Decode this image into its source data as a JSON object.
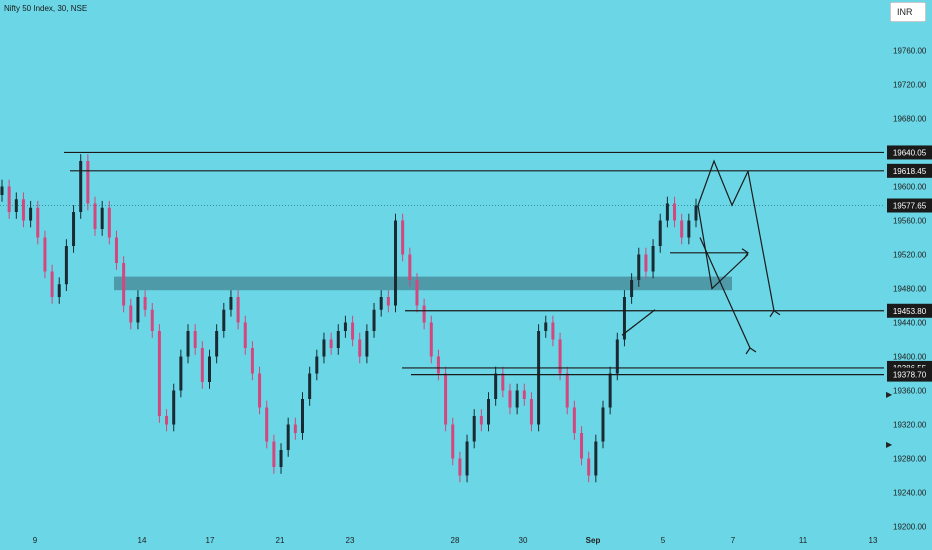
{
  "header": {
    "symbol": "Nifty 50 Index, 30, NSE",
    "currency": "INR"
  },
  "colors": {
    "background": "#6ad6e6",
    "up": "#1a2a33",
    "down": "#d6457e",
    "line": "#1a1a1a",
    "zone": "#4a8f9c",
    "tag_bg": "#1a1a1a",
    "tag_text": "#ffffff"
  },
  "chart_data": {
    "type": "candlestick",
    "title": "Nifty 50 Index, 30, NSE",
    "ylim": [
      19190,
      19790
    ],
    "y_ticks": [
      "19760.00",
      "19720.00",
      "19680.00",
      "19640.00",
      "19600.00",
      "19560.00",
      "19520.00",
      "19480.00",
      "19440.00",
      "19400.00",
      "19360.00",
      "19320.00",
      "19280.00",
      "19240.00",
      "19200.00"
    ],
    "x_ticks": [
      "9",
      "14",
      "17",
      "21",
      "23",
      "28",
      "30",
      "Sep",
      "5",
      "7",
      "11",
      "13"
    ],
    "levels": [
      {
        "label": "19640.05",
        "value": 19640.05
      },
      {
        "label": "19618.45",
        "value": 19618.45
      },
      {
        "label": "19453.80",
        "value": 19453.8
      },
      {
        "label": "19386.55",
        "value": 19386.55
      },
      {
        "label": "19378.70",
        "value": 19378.7
      }
    ],
    "last_price": {
      "label": "19577.65",
      "value": 19577.65
    },
    "zone": {
      "low": 19478,
      "high": 19494
    },
    "price_path": [
      [
        19600,
        "up"
      ],
      [
        19570,
        "dn"
      ],
      [
        19585,
        "up"
      ],
      [
        19560,
        "dn"
      ],
      [
        19575,
        "up"
      ],
      [
        19540,
        "dn"
      ],
      [
        19500,
        "dn"
      ],
      [
        19470,
        "dn"
      ],
      [
        19485,
        "up"
      ],
      [
        19530,
        "up"
      ],
      [
        19570,
        "up"
      ],
      [
        19630,
        "up"
      ],
      [
        19580,
        "dn"
      ],
      [
        19550,
        "dn"
      ],
      [
        19575,
        "up"
      ],
      [
        19540,
        "dn"
      ],
      [
        19510,
        "dn"
      ],
      [
        19460,
        "dn"
      ],
      [
        19440,
        "dn"
      ],
      [
        19470,
        "up"
      ],
      [
        19455,
        "dn"
      ],
      [
        19430,
        "dn"
      ],
      [
        19330,
        "dn"
      ],
      [
        19320,
        "dn"
      ],
      [
        19360,
        "up"
      ],
      [
        19400,
        "up"
      ],
      [
        19430,
        "up"
      ],
      [
        19410,
        "dn"
      ],
      [
        19370,
        "dn"
      ],
      [
        19400,
        "up"
      ],
      [
        19430,
        "up"
      ],
      [
        19455,
        "up"
      ],
      [
        19470,
        "up"
      ],
      [
        19440,
        "dn"
      ],
      [
        19410,
        "dn"
      ],
      [
        19380,
        "dn"
      ],
      [
        19340,
        "dn"
      ],
      [
        19300,
        "dn"
      ],
      [
        19270,
        "dn"
      ],
      [
        19290,
        "up"
      ],
      [
        19320,
        "up"
      ],
      [
        19310,
        "dn"
      ],
      [
        19350,
        "up"
      ],
      [
        19380,
        "up"
      ],
      [
        19400,
        "up"
      ],
      [
        19420,
        "up"
      ],
      [
        19410,
        "dn"
      ],
      [
        19430,
        "up"
      ],
      [
        19440,
        "up"
      ],
      [
        19420,
        "dn"
      ],
      [
        19400,
        "dn"
      ],
      [
        19430,
        "up"
      ],
      [
        19455,
        "up"
      ],
      [
        19470,
        "up"
      ],
      [
        19460,
        "dn"
      ],
      [
        19560,
        "up"
      ],
      [
        19520,
        "dn"
      ],
      [
        19490,
        "dn"
      ],
      [
        19460,
        "dn"
      ],
      [
        19440,
        "dn"
      ],
      [
        19400,
        "dn"
      ],
      [
        19380,
        "dn"
      ],
      [
        19320,
        "dn"
      ],
      [
        19280,
        "dn"
      ],
      [
        19260,
        "dn"
      ],
      [
        19300,
        "up"
      ],
      [
        19330,
        "up"
      ],
      [
        19320,
        "dn"
      ],
      [
        19350,
        "up"
      ],
      [
        19380,
        "up"
      ],
      [
        19360,
        "dn"
      ],
      [
        19340,
        "dn"
      ],
      [
        19360,
        "up"
      ],
      [
        19350,
        "dn"
      ],
      [
        19320,
        "dn"
      ],
      [
        19430,
        "up"
      ],
      [
        19440,
        "up"
      ],
      [
        19420,
        "dn"
      ],
      [
        19380,
        "dn"
      ],
      [
        19340,
        "dn"
      ],
      [
        19310,
        "dn"
      ],
      [
        19280,
        "dn"
      ],
      [
        19260,
        "dn"
      ],
      [
        19300,
        "up"
      ],
      [
        19340,
        "up"
      ],
      [
        19380,
        "up"
      ],
      [
        19420,
        "up"
      ],
      [
        19470,
        "up"
      ],
      [
        19490,
        "up"
      ],
      [
        19520,
        "up"
      ],
      [
        19500,
        "dn"
      ],
      [
        19530,
        "up"
      ],
      [
        19560,
        "up"
      ],
      [
        19580,
        "up"
      ],
      [
        19560,
        "dn"
      ],
      [
        19540,
        "dn"
      ],
      [
        19560,
        "up"
      ],
      [
        19577.65,
        "up"
      ]
    ]
  }
}
